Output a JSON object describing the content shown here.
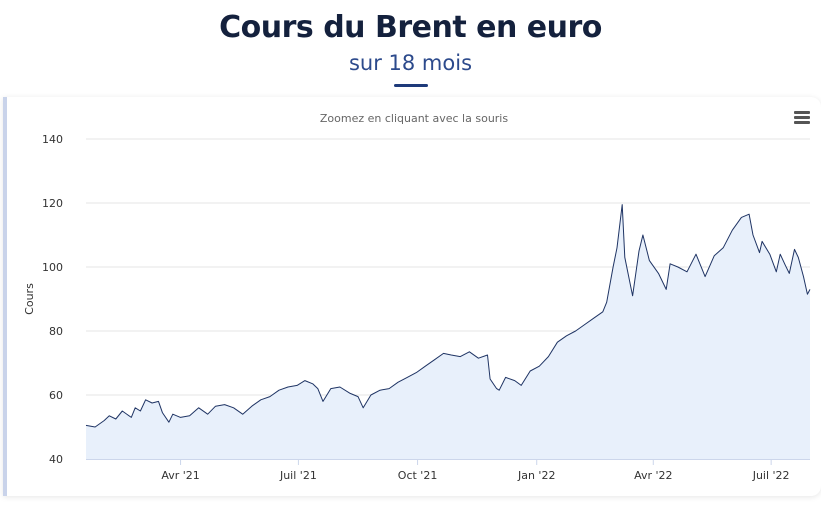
{
  "header": {
    "title": "Cours du Brent en euro",
    "subtitle": "sur 18 mois"
  },
  "chart": {
    "zoom_hint": "Zoomez en cliquant avec la souris",
    "menu_icon": "hamburger-menu-icon"
  },
  "colors": {
    "title": "#14213d",
    "subtitle": "#2c4a8c",
    "line": "#1f3464",
    "area": "#e8f0fb",
    "grid": "#e6e6e6"
  },
  "chart_data": {
    "type": "area",
    "title": "Cours du Brent en euro",
    "subtitle": "sur 18 mois",
    "xlabel": "",
    "ylabel": "Cours",
    "ylim": [
      40,
      140
    ],
    "yticks": [
      40,
      60,
      80,
      100,
      120,
      140
    ],
    "xlim": [
      "2021-01-18",
      "2022-07-31"
    ],
    "xticks": [
      {
        "date": "2021-04-01",
        "label": "Avr '21"
      },
      {
        "date": "2021-07-01",
        "label": "Juil '21"
      },
      {
        "date": "2021-10-01",
        "label": "Oct '21"
      },
      {
        "date": "2022-01-01",
        "label": "Jan '22"
      },
      {
        "date": "2022-04-01",
        "label": "Avr '22"
      },
      {
        "date": "2022-07-01",
        "label": "Juil '22"
      }
    ],
    "grid": true,
    "legend": "none",
    "series": [
      {
        "name": "",
        "points": [
          [
            "2021-01-18",
            50.5
          ],
          [
            "2021-01-25",
            50.0
          ],
          [
            "2021-02-01",
            52.0
          ],
          [
            "2021-02-05",
            53.5
          ],
          [
            "2021-02-10",
            52.5
          ],
          [
            "2021-02-15",
            55.0
          ],
          [
            "2021-02-22",
            53.0
          ],
          [
            "2021-02-25",
            56.0
          ],
          [
            "2021-03-01",
            55.0
          ],
          [
            "2021-03-05",
            58.5
          ],
          [
            "2021-03-10",
            57.5
          ],
          [
            "2021-03-15",
            58.0
          ],
          [
            "2021-03-18",
            54.5
          ],
          [
            "2021-03-23",
            51.5
          ],
          [
            "2021-03-26",
            54.0
          ],
          [
            "2021-04-01",
            53.0
          ],
          [
            "2021-04-08",
            53.5
          ],
          [
            "2021-04-15",
            56.0
          ],
          [
            "2021-04-22",
            54.0
          ],
          [
            "2021-04-28",
            56.5
          ],
          [
            "2021-05-05",
            57.0
          ],
          [
            "2021-05-12",
            56.0
          ],
          [
            "2021-05-19",
            54.0
          ],
          [
            "2021-05-26",
            56.5
          ],
          [
            "2021-06-02",
            58.5
          ],
          [
            "2021-06-09",
            59.5
          ],
          [
            "2021-06-16",
            61.5
          ],
          [
            "2021-06-23",
            62.5
          ],
          [
            "2021-06-30",
            63.0
          ],
          [
            "2021-07-06",
            64.5
          ],
          [
            "2021-07-12",
            63.5
          ],
          [
            "2021-07-16",
            62.0
          ],
          [
            "2021-07-20",
            58.0
          ],
          [
            "2021-07-26",
            62.0
          ],
          [
            "2021-08-02",
            62.5
          ],
          [
            "2021-08-10",
            60.5
          ],
          [
            "2021-08-16",
            59.5
          ],
          [
            "2021-08-20",
            56.0
          ],
          [
            "2021-08-26",
            60.0
          ],
          [
            "2021-09-02",
            61.5
          ],
          [
            "2021-09-09",
            62.0
          ],
          [
            "2021-09-16",
            64.0
          ],
          [
            "2021-09-23",
            65.5
          ],
          [
            "2021-09-30",
            67.0
          ],
          [
            "2021-10-07",
            69.0
          ],
          [
            "2021-10-14",
            71.0
          ],
          [
            "2021-10-21",
            73.0
          ],
          [
            "2021-10-27",
            72.5
          ],
          [
            "2021-11-03",
            72.0
          ],
          [
            "2021-11-10",
            73.5
          ],
          [
            "2021-11-17",
            71.5
          ],
          [
            "2021-11-24",
            72.5
          ],
          [
            "2021-11-26",
            65.0
          ],
          [
            "2021-12-01",
            62.0
          ],
          [
            "2021-12-03",
            61.5
          ],
          [
            "2021-12-08",
            65.5
          ],
          [
            "2021-12-15",
            64.5
          ],
          [
            "2021-12-20",
            63.0
          ],
          [
            "2021-12-27",
            67.5
          ],
          [
            "2022-01-03",
            69.0
          ],
          [
            "2022-01-10",
            72.0
          ],
          [
            "2022-01-17",
            76.5
          ],
          [
            "2022-01-24",
            78.5
          ],
          [
            "2022-01-31",
            80.0
          ],
          [
            "2022-02-07",
            82.0
          ],
          [
            "2022-02-14",
            84.0
          ],
          [
            "2022-02-21",
            86.0
          ],
          [
            "2022-02-24",
            89.0
          ],
          [
            "2022-03-01",
            100.0
          ],
          [
            "2022-03-04",
            106.0
          ],
          [
            "2022-03-08",
            119.5
          ],
          [
            "2022-03-10",
            103.0
          ],
          [
            "2022-03-16",
            91.0
          ],
          [
            "2022-03-21",
            105.0
          ],
          [
            "2022-03-24",
            110.0
          ],
          [
            "2022-03-29",
            102.0
          ],
          [
            "2022-04-05",
            98.0
          ],
          [
            "2022-04-11",
            93.0
          ],
          [
            "2022-04-14",
            101.0
          ],
          [
            "2022-04-20",
            100.0
          ],
          [
            "2022-04-27",
            98.5
          ],
          [
            "2022-05-04",
            104.0
          ],
          [
            "2022-05-11",
            97.0
          ],
          [
            "2022-05-18",
            103.5
          ],
          [
            "2022-05-25",
            106.0
          ],
          [
            "2022-06-01",
            111.5
          ],
          [
            "2022-06-08",
            115.5
          ],
          [
            "2022-06-14",
            116.5
          ],
          [
            "2022-06-17",
            110.0
          ],
          [
            "2022-06-22",
            104.5
          ],
          [
            "2022-06-24",
            108.0
          ],
          [
            "2022-06-30",
            104.0
          ],
          [
            "2022-07-05",
            98.5
          ],
          [
            "2022-07-08",
            104.0
          ],
          [
            "2022-07-12",
            100.5
          ],
          [
            "2022-07-15",
            98.0
          ],
          [
            "2022-07-19",
            105.5
          ],
          [
            "2022-07-22",
            103.0
          ],
          [
            "2022-07-26",
            97.0
          ],
          [
            "2022-07-29",
            91.5
          ],
          [
            "2022-07-31",
            93.0
          ]
        ]
      }
    ]
  }
}
